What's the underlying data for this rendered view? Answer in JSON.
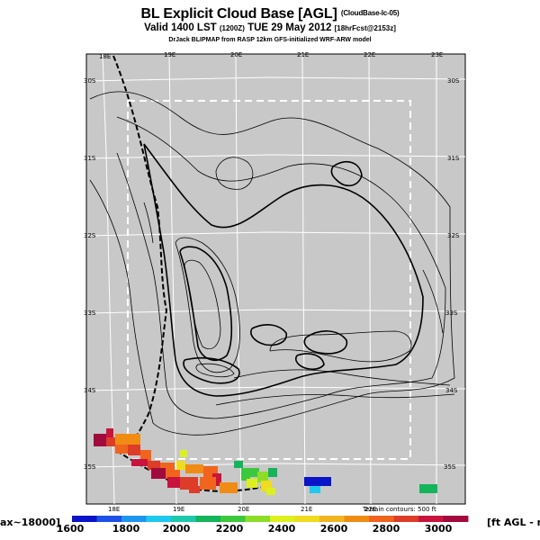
{
  "header": {
    "title": "BL Explicit Cloud Base [AGL]",
    "title_note": "(CloudBase-lc-05)",
    "subtitle": "Valid 1400 LST",
    "subtitle_utc": "(1200Z)",
    "subtitle_date": "TUE 29 May 2012",
    "subtitle_fcst": "[18hrFcst@2153z]",
    "credit": "DrJack BLIPMAP from RASP 12km GFS-initialized WRF-ARW model"
  },
  "map": {
    "plot_bg": "#c8c8c8",
    "lon_top": [
      "18E",
      "19E",
      "20E",
      "21E",
      "22E",
      "23E"
    ],
    "lon_bottom": [
      "18E",
      "19E",
      "20E",
      "21E",
      "22E"
    ],
    "lat_left": [
      "30S",
      "31S",
      "32S",
      "33S",
      "34S",
      "35S"
    ],
    "lat_right": [
      "30S",
      "31S",
      "32S",
      "33S",
      "34S",
      "35S"
    ],
    "terrain_note": "Terrain contours: 500 ft"
  },
  "colorbar": {
    "left_label": "ax~18000]",
    "right_label": "[ft AGL - m",
    "tick_labels": [
      "1600",
      "1800",
      "2000",
      "2200",
      "2400",
      "2600",
      "2800",
      "3000"
    ],
    "colors": [
      "#0a14c8",
      "#1e50e6",
      "#1e96f0",
      "#1ec8f0",
      "#1ec8aa",
      "#14b45a",
      "#3cc83c",
      "#8cdc28",
      "#dcf01e",
      "#f0dc1e",
      "#f0b41e",
      "#f08c14",
      "#f0641e",
      "#dc3c28",
      "#c8143c",
      "#a00a3c"
    ]
  }
}
